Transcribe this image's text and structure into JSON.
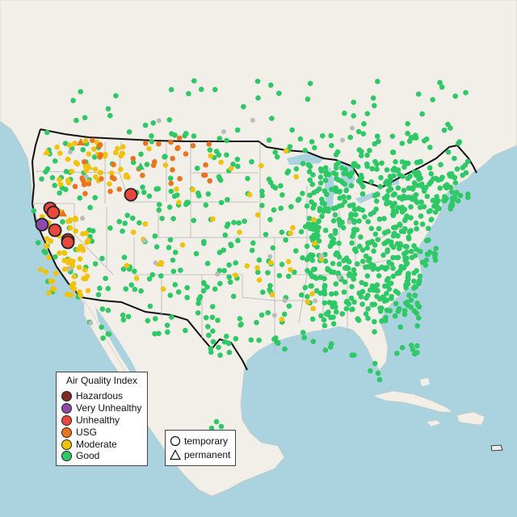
{
  "map": {
    "region": "contiguous United States with Canada, Mexico and Caribbean",
    "colors": {
      "water": "#aad3df",
      "land": "#f2efe9",
      "border": "#111111",
      "state_lines": "#b5b5b5"
    }
  },
  "legend": {
    "title": "Air Quality Index",
    "categories": [
      {
        "label": "Hazardous",
        "color": "#7e2a25"
      },
      {
        "label": "Very Unhealthy",
        "color": "#8e4aa8"
      },
      {
        "label": "Unhealthy",
        "color": "#e8483d"
      },
      {
        "label": "USG",
        "color": "#e8741f"
      },
      {
        "label": "Moderate",
        "color": "#f0c20a"
      },
      {
        "label": "Good",
        "color": "#2ec866"
      }
    ]
  },
  "shape_legend": {
    "items": [
      {
        "label": "temporary",
        "shape": "circle"
      },
      {
        "label": "permanent",
        "shape": "triangle"
      }
    ]
  },
  "monitors": {
    "count_by_category": {
      "Hazardous": 0,
      "Very Unhealthy": 1,
      "Unhealthy": 6,
      "USG": 40,
      "Moderate": 150,
      "Good": 850
    },
    "no_data_color": "#bbbbbb"
  }
}
